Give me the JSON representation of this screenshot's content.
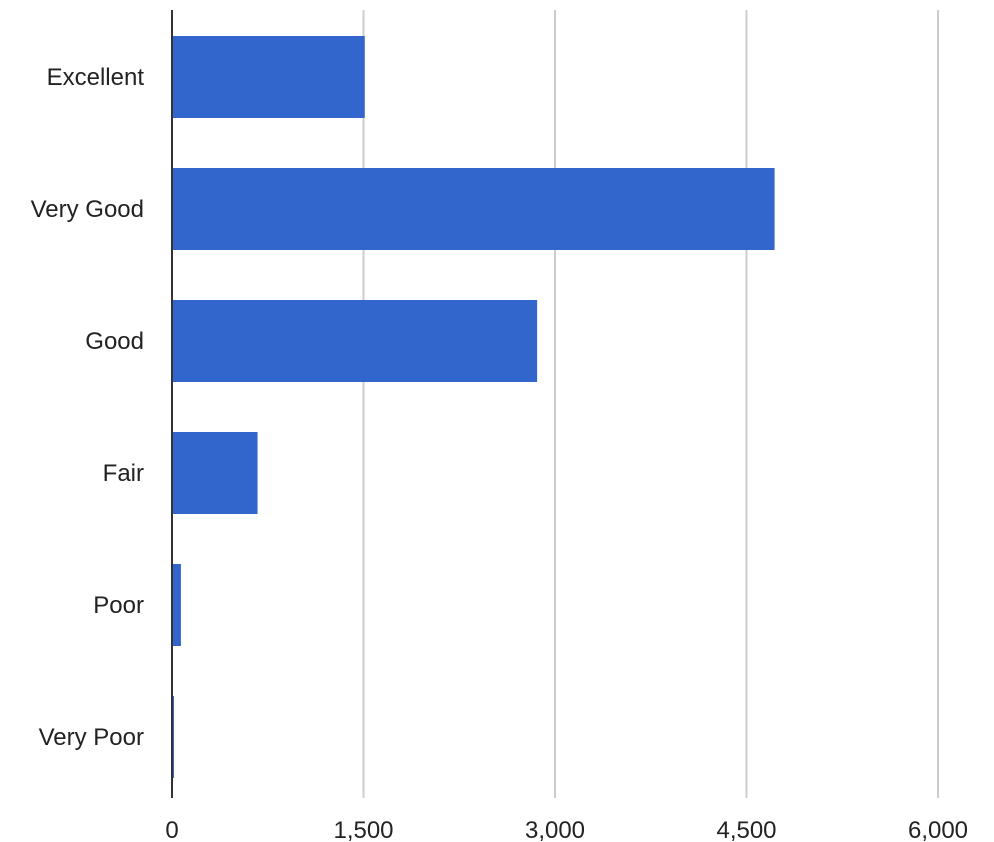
{
  "colors": {
    "bar": "#3366cc",
    "grid": "#cccccc",
    "baseline": "#333333",
    "text": "#222222"
  },
  "chart_data": {
    "type": "bar",
    "orientation": "horizontal",
    "categories": [
      "Excellent",
      "Very Good",
      "Good",
      "Fair",
      "Poor",
      "Very Poor"
    ],
    "values": [
      1510,
      4720,
      2860,
      670,
      70,
      10
    ],
    "xticks": [
      "0",
      "1,500",
      "3,000",
      "4,500",
      "6,000"
    ],
    "xtick_values": [
      0,
      1500,
      3000,
      4500,
      6000
    ],
    "xlim": [
      0,
      6000
    ],
    "title": "",
    "xlabel": "",
    "ylabel": "",
    "grid": true,
    "legend": "none"
  }
}
